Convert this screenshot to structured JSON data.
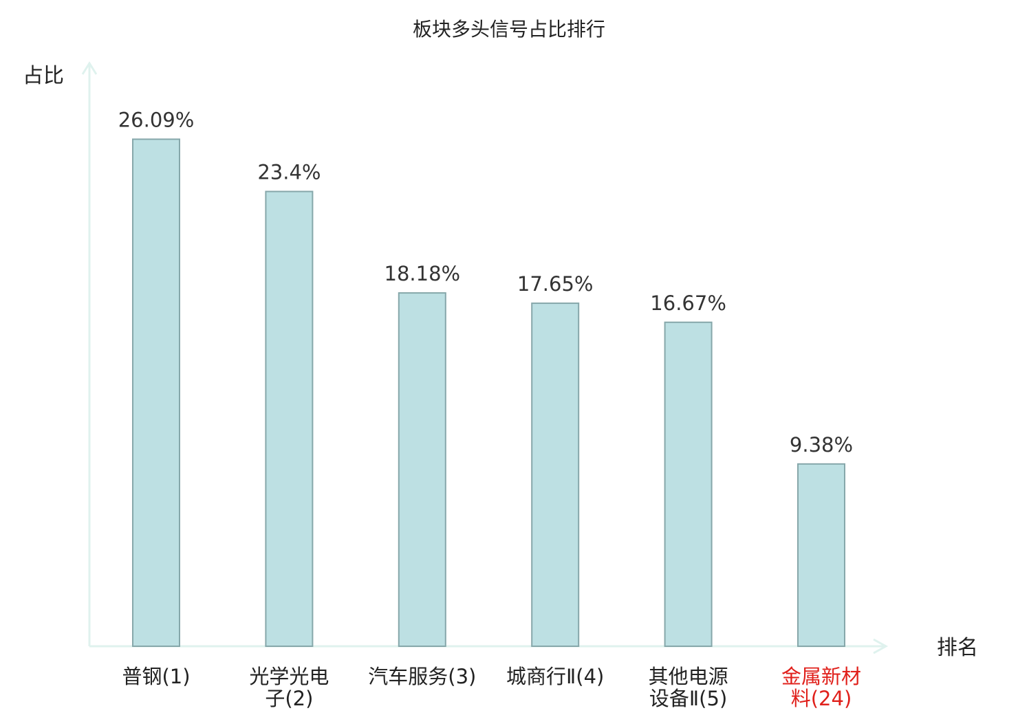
{
  "chart_data": {
    "type": "bar",
    "title": "板块多头信号占比排行",
    "ylabel": "占比",
    "xlabel": "排名",
    "ylim": [
      0,
      28.3
    ],
    "grid": false,
    "legend": "none",
    "categories": [
      [
        "普钢(1)"
      ],
      [
        "光学光电",
        "子(2)"
      ],
      [
        "汽车服务(3)"
      ],
      [
        "城商行Ⅱ(4)"
      ],
      [
        "其他电源",
        "设备Ⅱ(5)"
      ],
      [
        "金属新材",
        "料(24)"
      ]
    ],
    "values": [
      26.09,
      23.4,
      18.18,
      17.65,
      16.67,
      9.38
    ],
    "value_labels": [
      "26.09%",
      "23.4%",
      "18.18%",
      "17.65%",
      "16.67%",
      "9.38%"
    ],
    "highlight_index": 5,
    "colors": {
      "bar_fill": "#bde0e3",
      "bar_stroke": "#86a7aa",
      "axis": "#dff2ee",
      "highlight_text": "#e0201b",
      "text": "#222222"
    }
  }
}
